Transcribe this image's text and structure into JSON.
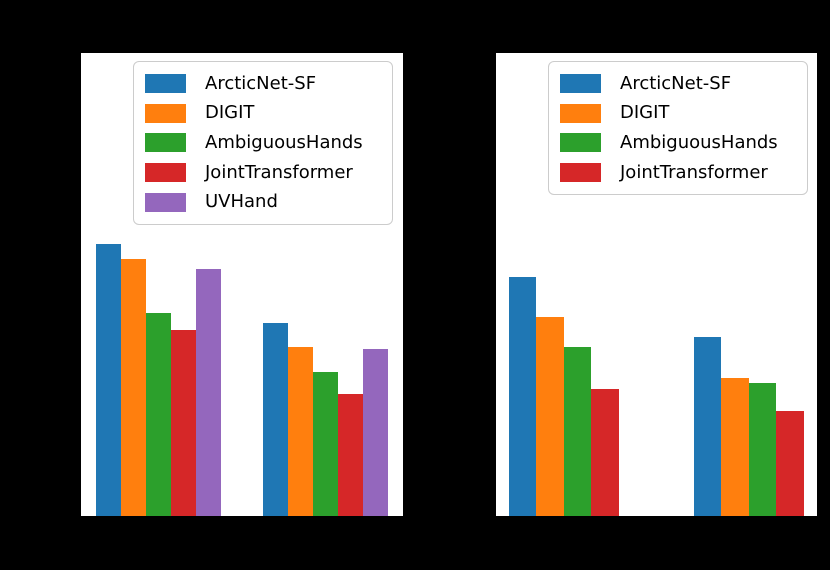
{
  "figure": {
    "background_color": "#000000",
    "panel_color": "#ffffff"
  },
  "chart_data": [
    {
      "id": "left",
      "type": "bar",
      "title": "",
      "categories": [
        "",
        ""
      ],
      "ylim": [
        0,
        1
      ],
      "value_units": "fraction-of-axis-height (axis tick labels and titles are not visible in the screenshot: black text on black background)",
      "legend_position": "upper center",
      "grid": false,
      "series": [
        {
          "name": "ArcticNet-SF",
          "color": "#1f77b4",
          "values": [
            0.587,
            0.417
          ]
        },
        {
          "name": "DIGIT",
          "color": "#ff7f0e",
          "values": [
            0.555,
            0.365
          ]
        },
        {
          "name": "AmbiguousHands",
          "color": "#2ca02c",
          "values": [
            0.438,
            0.311
          ]
        },
        {
          "name": "JointTransformer",
          "color": "#d62728",
          "values": [
            0.402,
            0.264
          ]
        },
        {
          "name": "UVHand",
          "color": "#9467bd",
          "values": [
            0.533,
            0.361
          ]
        }
      ]
    },
    {
      "id": "right",
      "type": "bar",
      "title": "",
      "categories": [
        "",
        ""
      ],
      "ylim": [
        0,
        1
      ],
      "value_units": "fraction-of-axis-height (axis tick labels and titles are not visible in the screenshot: black text on black background)",
      "legend_position": "upper center",
      "grid": false,
      "series": [
        {
          "name": "ArcticNet-SF",
          "color": "#1f77b4",
          "values": [
            0.516,
            0.387
          ]
        },
        {
          "name": "DIGIT",
          "color": "#ff7f0e",
          "values": [
            0.43,
            0.298
          ]
        },
        {
          "name": "AmbiguousHands",
          "color": "#2ca02c",
          "values": [
            0.365,
            0.287
          ]
        },
        {
          "name": "JointTransformer",
          "color": "#d62728",
          "values": [
            0.274,
            0.227
          ]
        }
      ]
    }
  ]
}
